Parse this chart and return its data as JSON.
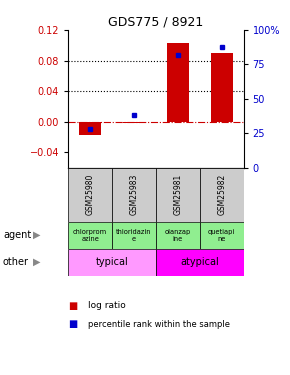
{
  "title": "GDS775 / 8921",
  "samples": [
    "GSM25980",
    "GSM25983",
    "GSM25981",
    "GSM25982"
  ],
  "log_ratio": [
    -0.017,
    -0.002,
    0.103,
    0.09
  ],
  "percentile_rank_pct": [
    28,
    38,
    82,
    88
  ],
  "ylim_left": [
    -0.06,
    0.12
  ],
  "ylim_right": [
    0,
    100
  ],
  "yticks_left": [
    -0.04,
    0.0,
    0.04,
    0.08,
    0.12
  ],
  "yticks_right": [
    0,
    25,
    50,
    75,
    100
  ],
  "hlines": [
    0.04,
    0.08
  ],
  "agent_labels": [
    "chlorprom\nazine",
    "thioridazin\ne",
    "olanzap\nine",
    "quetiapi\nne"
  ],
  "other_labels": [
    "typical",
    "atypical"
  ],
  "agent_color": "#90EE90",
  "typical_color": "#FF99FF",
  "atypical_color": "#FF00FF",
  "sample_bg_color": "#CCCCCC",
  "bar_color": "#CC0000",
  "dot_color": "#0000CC",
  "zero_line_color": "#CC0000",
  "bg_color": "#ffffff",
  "left_label_color": "#CC0000",
  "right_label_color": "#0000CC"
}
